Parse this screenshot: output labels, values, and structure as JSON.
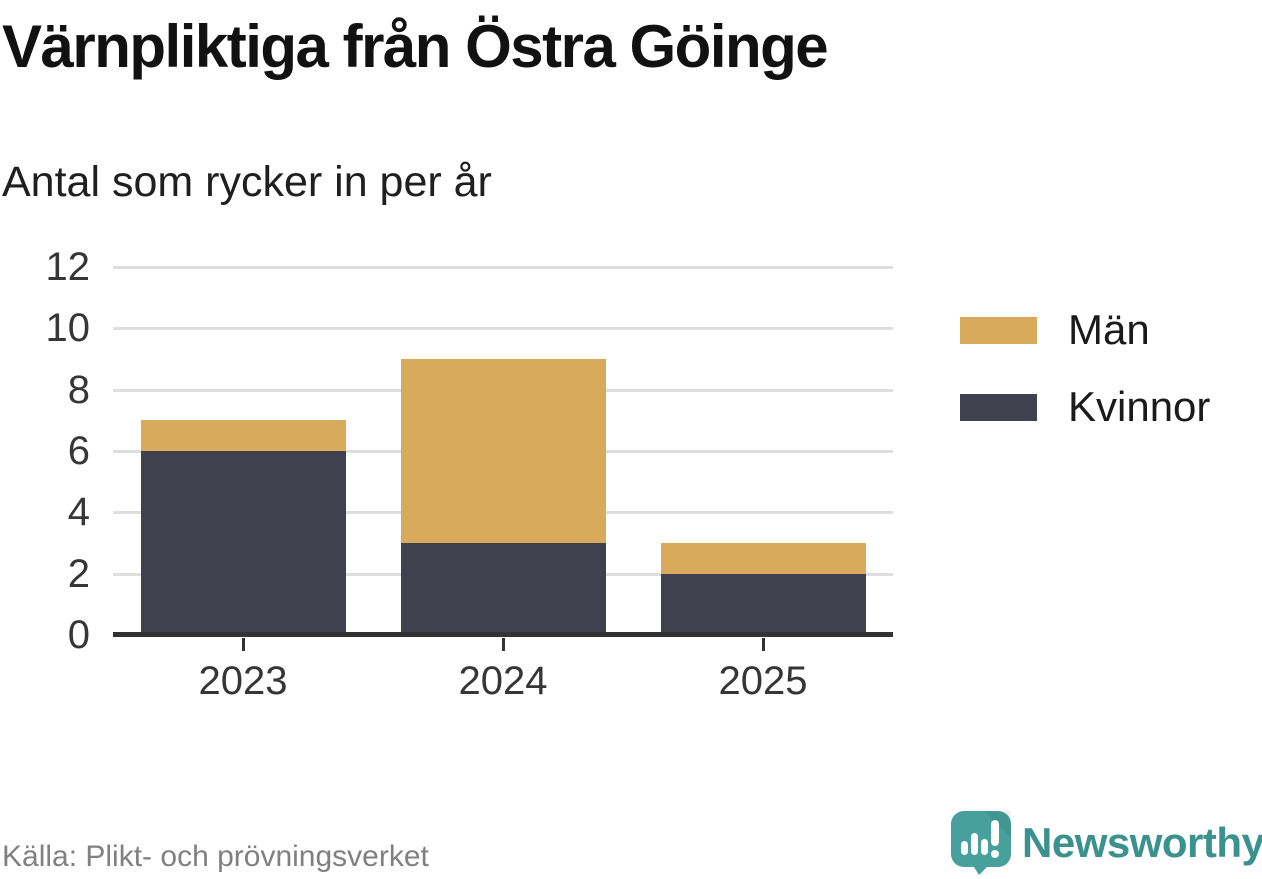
{
  "header": {
    "title": "Värnpliktiga från Östra Göinge",
    "subtitle": "Antal som rycker in per år"
  },
  "chart_data": {
    "type": "bar",
    "stacked": true,
    "title": "Värnpliktiga från Östra Göinge",
    "subtitle": "Antal som rycker in per år",
    "categories": [
      "2023",
      "2024",
      "2025"
    ],
    "series": [
      {
        "name": "Kvinnor",
        "color": "#41404e",
        "values": [
          6,
          3,
          2
        ]
      },
      {
        "name": "Män",
        "color": "#d8ab5c",
        "values": [
          1,
          6,
          1
        ]
      }
    ],
    "totals": [
      7,
      9,
      3
    ],
    "ylim": [
      0,
      12
    ],
    "yticks": [
      0,
      2,
      4,
      6,
      8,
      10,
      12
    ],
    "grid": true,
    "legend_position": "right"
  },
  "legend": {
    "items": [
      {
        "label": "Män",
        "color": "#d8ab5c"
      },
      {
        "label": "Kvinnor",
        "color": "#41404e"
      }
    ]
  },
  "footer": {
    "source": "Källa: Plikt- och prövningsverket",
    "brand": "Newsworthy"
  },
  "colors": {
    "men": "#d8ab5c",
    "women": "#41404e",
    "axis": "#333333",
    "grid": "#dedede",
    "source_text": "#808080",
    "brand_teal": "#3a918d",
    "logo_bubble": "#47a09b"
  },
  "icons": {
    "logo": "newsworthy-logo-icon"
  }
}
